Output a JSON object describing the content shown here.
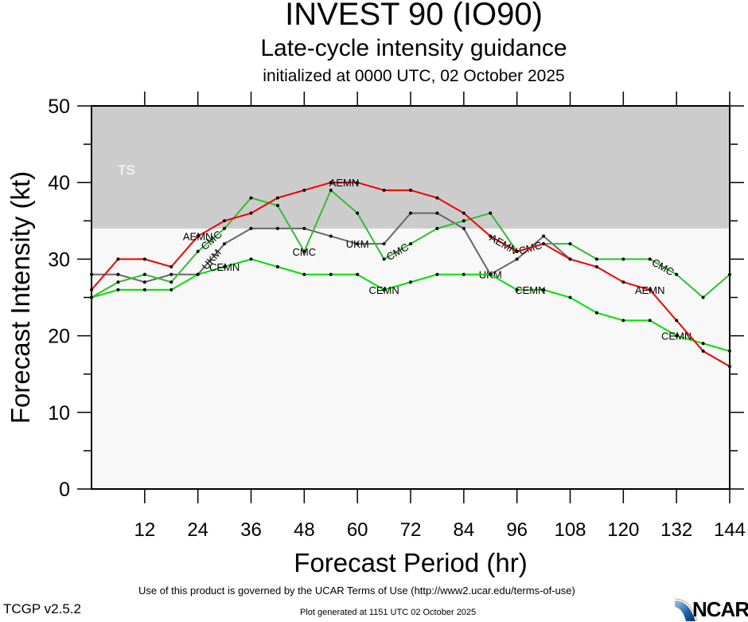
{
  "header": {
    "title": "INVEST 90 (IO90)",
    "subtitle": "Late-cycle intensity guidance",
    "init": "initialized at 0000 UTC, 02 October 2025"
  },
  "footer": {
    "terms": "Use of this product is governed by the UCAR Terms of Use (http://www2.ucar.edu/terms-of-use)",
    "version": "TCGP v2.5.2",
    "generated": "Plot generated at 1151 UTC   02 October 2025",
    "logo": "NCAR"
  },
  "chart_data": {
    "type": "line",
    "title": "INVEST 90 (IO90)",
    "xlabel": "Forecast Period (hr)",
    "ylabel": "Forecast Intensity (kt)",
    "xlim": [
      0,
      144
    ],
    "ylim": [
      0,
      50
    ],
    "xticks": [
      12,
      24,
      36,
      48,
      60,
      72,
      84,
      96,
      108,
      120,
      132,
      144
    ],
    "yticks": [
      0,
      10,
      20,
      30,
      40,
      50
    ],
    "bands": [
      {
        "label": "TS",
        "from": 34,
        "to": 50,
        "color": "#cccccc"
      }
    ],
    "plot_bg": "#f8f8f8",
    "x": [
      0,
      6,
      12,
      18,
      24,
      30,
      36,
      42,
      48,
      54,
      60,
      66,
      72,
      78,
      84,
      90,
      96,
      102,
      108,
      114,
      120,
      126,
      132,
      138,
      144
    ],
    "series": [
      {
        "name": "UKM",
        "color": "#666666",
        "label_at": [
          60,
          90,
          27
        ],
        "values": [
          28,
          28,
          27,
          28,
          28,
          32,
          34,
          34,
          34,
          33,
          32,
          32,
          36,
          36,
          34,
          28,
          30,
          33,
          30,
          null,
          null,
          null,
          null,
          null,
          null
        ]
      },
      {
        "name": "CEMN",
        "color": "#00e000",
        "label_at": [
          30,
          66,
          99,
          132
        ],
        "values": [
          25,
          26,
          26,
          26,
          28,
          29,
          30,
          29,
          28,
          28,
          28,
          26,
          27,
          28,
          28,
          28,
          26,
          26,
          25,
          23,
          22,
          22,
          20,
          19,
          18
        ]
      },
      {
        "name": "CMC",
        "color": "#33bb33",
        "label_at": [
          27,
          48,
          69,
          99,
          129
        ],
        "values": [
          25,
          27,
          28,
          27,
          31,
          34,
          38,
          37,
          31,
          39,
          36,
          30,
          32,
          34,
          35,
          36,
          31,
          32,
          32,
          30,
          30,
          30,
          28,
          25,
          28
        ]
      },
      {
        "name": "AEMN",
        "color": "#ee0000",
        "label_at": [
          24,
          57,
          93,
          126
        ],
        "values": [
          26,
          30,
          30,
          29,
          33,
          35,
          36,
          38,
          39,
          40,
          40,
          39,
          39,
          38,
          36,
          33,
          31,
          32,
          30,
          29,
          27,
          26,
          22,
          18,
          16
        ]
      }
    ]
  }
}
